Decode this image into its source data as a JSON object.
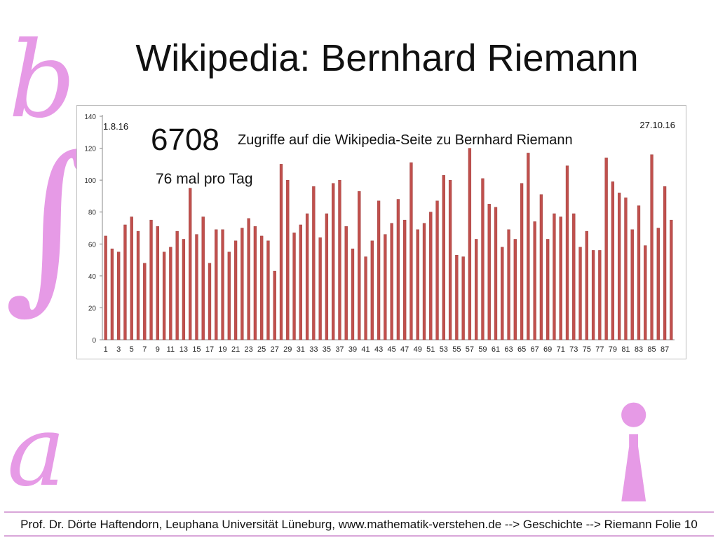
{
  "slide": {
    "title": "Wikipedia: Bernhard Riemann",
    "deco_b": "b",
    "deco_integral": "∫",
    "deco_a": "a",
    "deco_exclaim": "¡",
    "footer": "Prof. Dr. Dörte Haftendorn, Leuphana Universität Lüneburg, www.mathematik-verstehen.de -->  Geschichte --> Riemann  Folie 10"
  },
  "colors": {
    "bar": "#c0504d",
    "bar_dark": "#943634",
    "decor": "#e69ae6"
  },
  "chart_data": {
    "type": "bar",
    "ylim": [
      0,
      140
    ],
    "yticks": [
      0,
      20,
      40,
      60,
      80,
      100,
      120,
      140
    ],
    "x": [
      1,
      2,
      3,
      4,
      5,
      6,
      7,
      8,
      9,
      10,
      11,
      12,
      13,
      14,
      15,
      16,
      17,
      18,
      19,
      20,
      21,
      22,
      23,
      24,
      25,
      26,
      27,
      28,
      29,
      30,
      31,
      32,
      33,
      34,
      35,
      36,
      37,
      38,
      39,
      40,
      41,
      42,
      43,
      44,
      45,
      46,
      47,
      48,
      49,
      50,
      51,
      52,
      53,
      54,
      55,
      56,
      57,
      58,
      59,
      60,
      61,
      62,
      63,
      64,
      65,
      66,
      67,
      68,
      69,
      70,
      71,
      72,
      73,
      74,
      75,
      76,
      77,
      78,
      79,
      80,
      81,
      82,
      83,
      84,
      85,
      86,
      87,
      88
    ],
    "xtick_labels": [
      "1",
      "3",
      "5",
      "7",
      "9",
      "11",
      "13",
      "15",
      "17",
      "19",
      "21",
      "23",
      "25",
      "27",
      "29",
      "31",
      "33",
      "35",
      "37",
      "39",
      "41",
      "43",
      "45",
      "47",
      "49",
      "51",
      "53",
      "55",
      "57",
      "59",
      "61",
      "63",
      "65",
      "67",
      "69",
      "71",
      "73",
      "75",
      "77",
      "79",
      "81",
      "83",
      "85",
      "87"
    ],
    "values": [
      65,
      57,
      55,
      72,
      77,
      68,
      48,
      75,
      71,
      55,
      58,
      68,
      63,
      95,
      66,
      77,
      48,
      69,
      69,
      55,
      62,
      70,
      76,
      71,
      65,
      62,
      43,
      110,
      100,
      67,
      72,
      79,
      96,
      64,
      79,
      98,
      100,
      71,
      57,
      93,
      52,
      62,
      87,
      66,
      73,
      88,
      75,
      111,
      69,
      73,
      80,
      87,
      103,
      100,
      53,
      52,
      120,
      63,
      101,
      85,
      83,
      58,
      69,
      63,
      98,
      117,
      74,
      91,
      63,
      79,
      77,
      109,
      79,
      58,
      68,
      56,
      56,
      114,
      99,
      92,
      89,
      69,
      84,
      59,
      116,
      70,
      96,
      75
    ],
    "annotations": {
      "start_date": "1.8.16",
      "end_date": "27.10.16",
      "total": "6708",
      "caption": "Zugriffe auf die Wikipedia-Seite zu Bernhard Riemann",
      "per_day": "76 mal pro Tag"
    },
    "grid": false,
    "legend": "none"
  }
}
